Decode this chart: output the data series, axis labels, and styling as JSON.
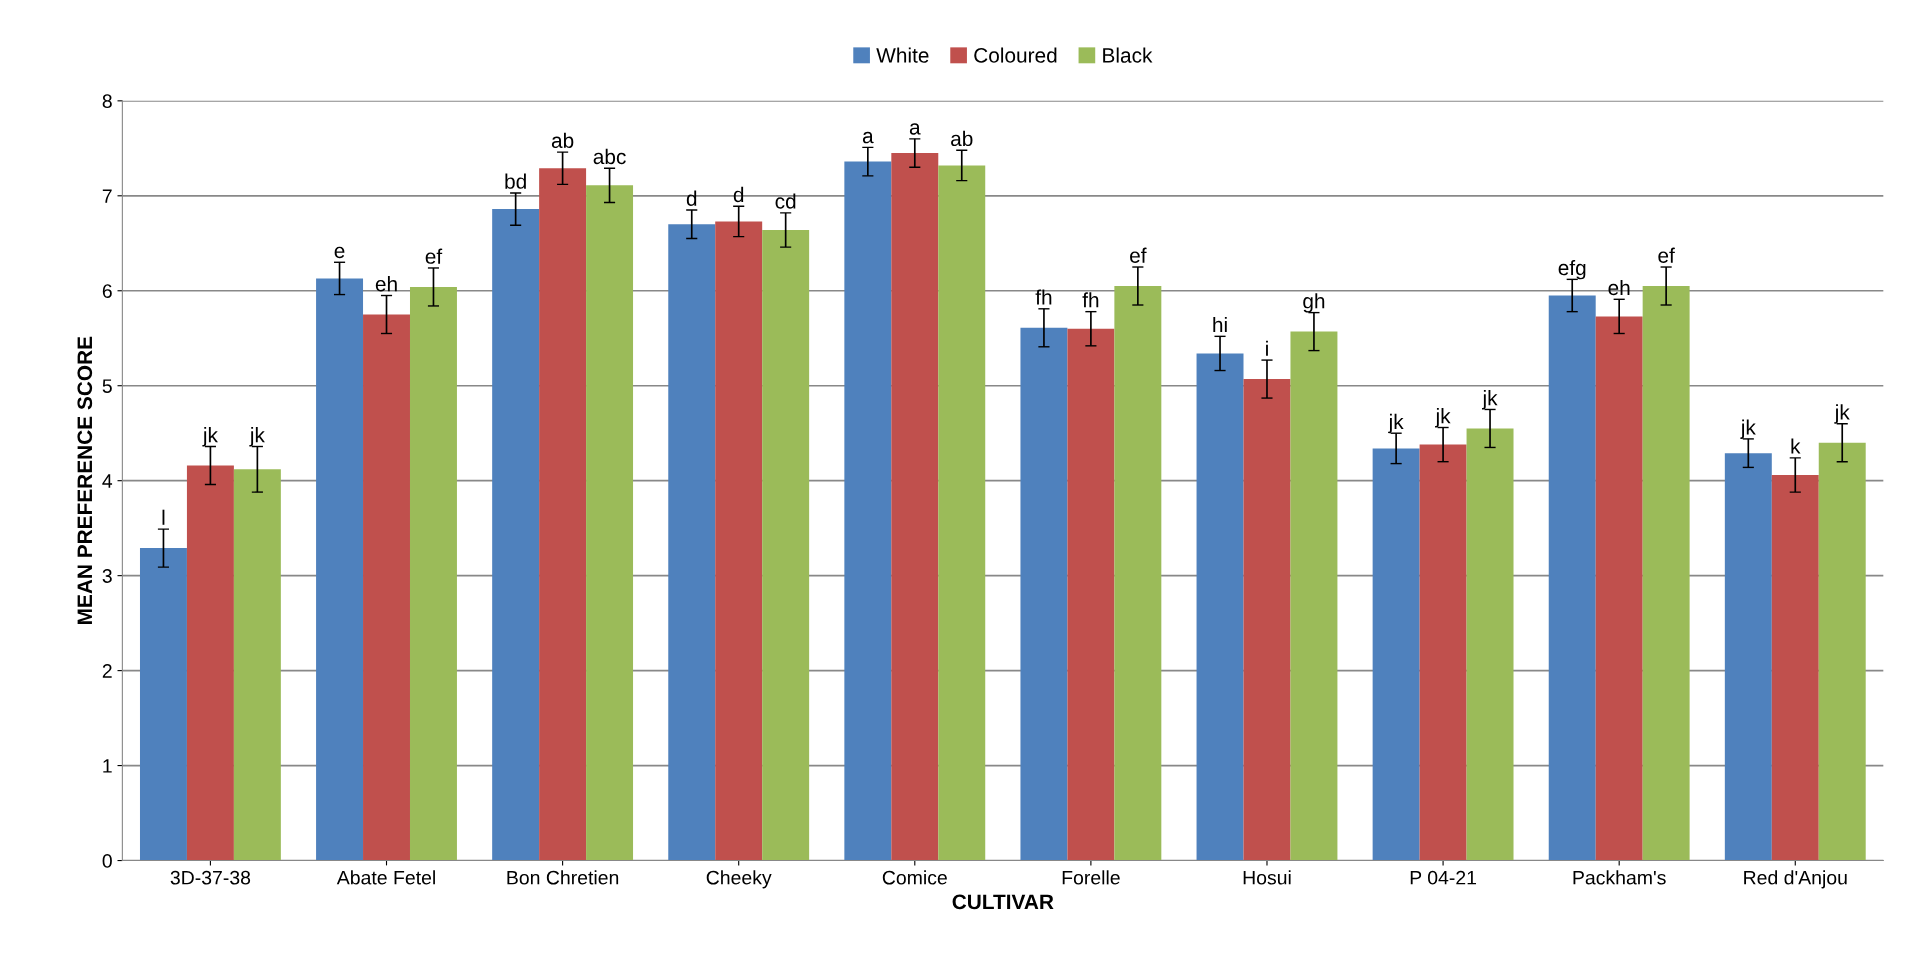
{
  "chart_data": {
    "type": "bar",
    "xlabel": "CULTIVAR",
    "ylabel": "MEAN PREFERENCE SCORE",
    "categories": [
      "3D-37-38",
      "Abate Fetel",
      "Bon Chretien",
      "Cheeky",
      "Comice",
      "Forelle",
      "Hosui",
      "P 04-21",
      "Packham's",
      "Red d'Anjou"
    ],
    "series": [
      {
        "name": "White",
        "color": "#4f81bd",
        "values": [
          3.29,
          6.13,
          6.86,
          6.7,
          7.36,
          5.61,
          5.34,
          4.34,
          5.95,
          4.29
        ],
        "errors": [
          0.2,
          0.17,
          0.17,
          0.15,
          0.15,
          0.2,
          0.18,
          0.16,
          0.17,
          0.15
        ],
        "value_labels": [
          "l",
          "e",
          "bd",
          "d",
          "a",
          "fh",
          "hi",
          "jk",
          "efg",
          "jk"
        ]
      },
      {
        "name": "Coloured",
        "color": "#c0504d",
        "values": [
          4.16,
          5.75,
          7.29,
          6.73,
          7.45,
          5.6,
          5.07,
          4.38,
          5.73,
          4.06
        ],
        "errors": [
          0.2,
          0.2,
          0.17,
          0.16,
          0.15,
          0.18,
          0.2,
          0.18,
          0.18,
          0.18
        ],
        "value_labels": [
          "jk",
          "eh",
          "ab",
          "d",
          "a",
          "fh",
          "i",
          "jk",
          "eh",
          "k"
        ]
      },
      {
        "name": "Black",
        "color": "#9bbb59",
        "values": [
          4.12,
          6.04,
          7.11,
          6.64,
          7.32,
          6.05,
          5.57,
          4.55,
          6.05,
          4.4
        ],
        "errors": [
          0.24,
          0.2,
          0.18,
          0.18,
          0.16,
          0.2,
          0.2,
          0.2,
          0.2,
          0.2
        ],
        "value_labels": [
          "jk",
          "ef",
          "abc",
          "cd",
          "ab",
          "ef",
          "gh",
          "jk",
          "ef",
          "jk"
        ]
      }
    ],
    "ylim": [
      0,
      8
    ],
    "yticks": [
      0,
      1,
      2,
      3,
      4,
      5,
      6,
      7,
      8
    ],
    "grid": "y",
    "legend": "top"
  }
}
